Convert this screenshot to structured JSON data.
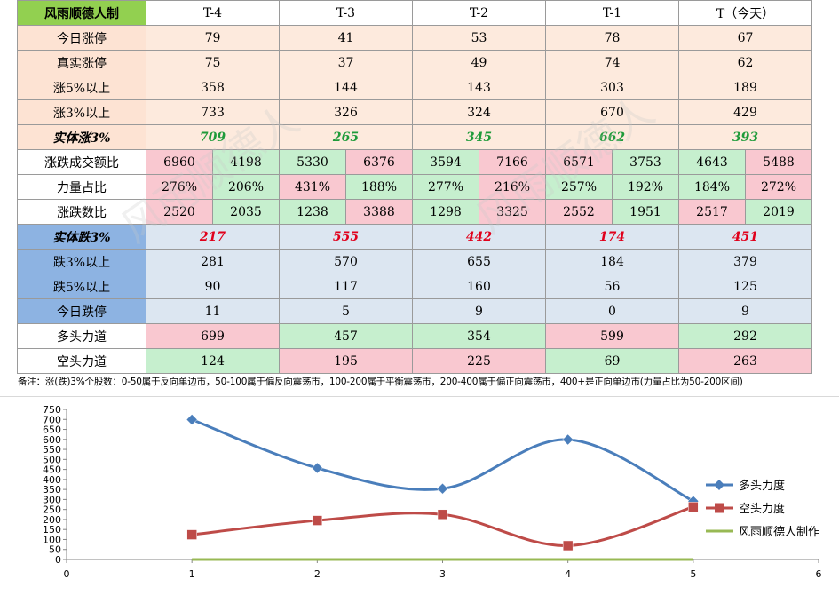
{
  "table": {
    "header": {
      "title": "风雨顺德人制",
      "cols": [
        "T-4",
        "T-3",
        "T-2",
        "T-1",
        "T（今天）"
      ]
    },
    "rows_top": [
      {
        "label": "今日涨停",
        "values": [
          "79",
          "41",
          "53",
          "78",
          "67"
        ]
      },
      {
        "label": "真实涨停",
        "values": [
          "75",
          "37",
          "49",
          "74",
          "62"
        ]
      },
      {
        "label": "涨5%以上",
        "values": [
          "358",
          "144",
          "143",
          "303",
          "189"
        ]
      },
      {
        "label": "涨3%以上",
        "values": [
          "733",
          "326",
          "324",
          "670",
          "429"
        ]
      }
    ],
    "row_up3": {
      "label": "实体涨3%",
      "values": [
        "709",
        "265",
        "345",
        "662",
        "393"
      ]
    },
    "row_amount": {
      "label": "涨跌成交额比",
      "values": [
        "6960",
        "4198",
        "5330",
        "6376",
        "3594",
        "7166",
        "6571",
        "3753",
        "4643",
        "5488"
      ],
      "colors": [
        "pink",
        "mint",
        "mint",
        "pink",
        "mint",
        "pink",
        "pink",
        "mint",
        "mint",
        "pink"
      ]
    },
    "row_power": {
      "label": "力量占比",
      "values": [
        "276%",
        "206%",
        "431%",
        "188%",
        "277%",
        "216%",
        "257%",
        "192%",
        "184%",
        "272%"
      ],
      "colors": [
        "pink",
        "mint",
        "pink",
        "mint",
        "mint",
        "pink",
        "mint",
        "mint",
        "mint",
        "pink"
      ]
    },
    "row_count": {
      "label": "涨跌数比",
      "values": [
        "2520",
        "2035",
        "1238",
        "3388",
        "1298",
        "3325",
        "2552",
        "1951",
        "2517",
        "2019"
      ],
      "colors": [
        "pink",
        "mint",
        "mint",
        "pink",
        "mint",
        "pink",
        "pink",
        "mint",
        "pink",
        "mint"
      ]
    },
    "row_down3": {
      "label": "实体跌3%",
      "values": [
        "217",
        "555",
        "442",
        "174",
        "451"
      ]
    },
    "rows_bottom": [
      {
        "label": "跌3%以上",
        "values": [
          "281",
          "570",
          "655",
          "184",
          "379"
        ]
      },
      {
        "label": "跌5%以上",
        "values": [
          "90",
          "117",
          "160",
          "56",
          "125"
        ]
      },
      {
        "label": "今日跌停",
        "values": [
          "11",
          "5",
          "9",
          "0",
          "9"
        ]
      }
    ],
    "row_bull": {
      "label": "多头力道",
      "values": [
        "699",
        "457",
        "354",
        "599",
        "292"
      ],
      "colors": [
        "pink",
        "mint",
        "mint",
        "pink",
        "mint"
      ]
    },
    "row_bear": {
      "label": "空头力道",
      "values": [
        "124",
        "195",
        "225",
        "69",
        "263"
      ],
      "colors": [
        "mint",
        "pink",
        "pink",
        "mint",
        "pink"
      ]
    }
  },
  "note": "备注：涨(跌)3%个股数：0-50属于反向单边市，50-100属于偏反向震荡市，100-200属于平衡震荡市，200-400属于偏正向震荡市，400+是正向单边市(力量占比为50-200区间)",
  "watermarks": [
    "风雨顺德人",
    "风雨顺德人"
  ],
  "chart_data": {
    "type": "line",
    "x": [
      1,
      2,
      3,
      4,
      5
    ],
    "series": [
      {
        "name": "多头力度",
        "values": [
          699,
          457,
          354,
          599,
          292
        ],
        "color": "#4a7ebb",
        "marker": "diamond"
      },
      {
        "name": "空头力度",
        "values": [
          124,
          195,
          225,
          69,
          263
        ],
        "color": "#be4b48",
        "marker": "square"
      },
      {
        "name": "风雨顺德人制作",
        "values": [
          0,
          0,
          0,
          0,
          0
        ],
        "color": "#98b954",
        "marker": "none"
      }
    ],
    "xlim": [
      0,
      6
    ],
    "ylim": [
      0,
      750
    ],
    "xticks": [
      "0",
      "1",
      "2",
      "3",
      "4",
      "5",
      "6"
    ],
    "yticks": [
      "0",
      "50",
      "100",
      "150",
      "200",
      "250",
      "300",
      "350",
      "400",
      "450",
      "500",
      "550",
      "600",
      "650",
      "700",
      "750"
    ],
    "smooth": true,
    "grid": false,
    "legend": "right"
  }
}
